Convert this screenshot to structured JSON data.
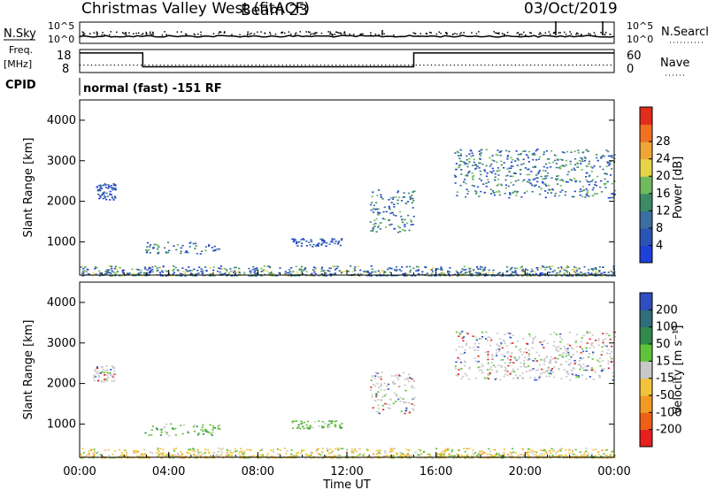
{
  "header": {
    "station": "Christmas Valley West (fitACF)",
    "beam": "Beam 23",
    "date": "03/Oct/2019"
  },
  "top_panels": {
    "nsky_label": "N.Sky",
    "nsearch_label": "N.Search",
    "freq_label_1": "Freq.",
    "freq_label_2": "[MHz]",
    "nave_label": "Nave",
    "cpid_label": "CPID",
    "cpid_text": "normal (fast) -151 RF",
    "noise_ticks": [
      "10^5",
      "10^0"
    ],
    "freq_ticks": [
      "18",
      "8"
    ],
    "nave_ticks": [
      "60",
      "0"
    ]
  },
  "axes": {
    "xlabel": "Time UT",
    "ylabel": "Slant Range [km]",
    "power_label": "Power [dB]",
    "velocity_label": "Velocity [m s⁻¹]"
  },
  "chart_data": [
    {
      "type": "line",
      "title": "Noise / Frequency / Nave",
      "series": [
        {
          "name": "N.Sky",
          "x": [
            "00:00",
            "02:00",
            "04:00",
            "06:00",
            "08:00",
            "10:00",
            "12:00",
            "14:00",
            "16:00",
            "18:00",
            "20:00",
            "22:00",
            "24:00"
          ],
          "values": [
            10,
            10,
            10,
            10,
            10,
            10,
            10,
            10,
            10,
            10,
            10,
            10,
            10
          ]
        },
        {
          "name": "Freq",
          "x": [
            "00:00",
            "02:50",
            "02:50",
            "15:00",
            "15:00",
            "24:00"
          ],
          "values": [
            16.5,
            16.5,
            10.5,
            10.5,
            16.5,
            16.5
          ]
        }
      ]
    },
    {
      "type": "heatmap",
      "title": "Power",
      "xlim": [
        "00:00",
        "24:00"
      ],
      "ylim": [
        180,
        4500
      ],
      "x_ticks": [
        "00:00",
        "04:00",
        "08:00",
        "12:00",
        "16:00",
        "20:00",
        "00:00"
      ],
      "y_ticks": [
        1000,
        2000,
        3000,
        4000
      ],
      "colorbar_ticks": [
        4,
        8,
        12,
        16,
        20,
        24,
        28
      ],
      "colorbar_label": "Power [dB]",
      "colorbar_colors": [
        "#1f3fd9",
        "#2b55b5",
        "#3c6ea0",
        "#3d8a67",
        "#6fba5f",
        "#e7d34a",
        "#f0a634",
        "#f07220",
        "#e02d1d"
      ],
      "regions": [
        {
          "t0": 0.6,
          "t1": 1.6,
          "r0": 2050,
          "r1": 2450,
          "dominant": "blue"
        },
        {
          "t0": 2.9,
          "t1": 6.3,
          "r0": 720,
          "r1": 1020,
          "dominant": "blue-green"
        },
        {
          "t0": 9.5,
          "t1": 11.8,
          "r0": 900,
          "r1": 1100,
          "dominant": "blue"
        },
        {
          "t0": 13.0,
          "t1": 15.0,
          "r0": 1250,
          "r1": 2300,
          "dominant": "blue-green"
        },
        {
          "t0": 16.8,
          "t1": 24.0,
          "r0": 2100,
          "r1": 3300,
          "dominant": "blue-green"
        },
        {
          "t0": 0.0,
          "t1": 24.0,
          "r0": 180,
          "r1": 420,
          "dominant": "ground-scatter"
        }
      ]
    },
    {
      "type": "heatmap",
      "title": "Velocity",
      "xlim": [
        "00:00",
        "24:00"
      ],
      "ylim": [
        180,
        4500
      ],
      "x_ticks": [
        "00:00",
        "04:00",
        "08:00",
        "12:00",
        "16:00",
        "20:00",
        "00:00"
      ],
      "y_ticks": [
        1000,
        2000,
        3000,
        4000
      ],
      "colorbar_ticks": [
        200,
        100,
        50,
        15,
        -15,
        -50,
        -100,
        -200
      ],
      "colorbar_label": "Velocity [m s⁻¹]",
      "colorbar_colors": [
        "#2f4ec0",
        "#2f6e7a",
        "#31894a",
        "#5fc23a",
        "#c8c8c8",
        "#f3c43b",
        "#f39a24",
        "#ef6016",
        "#e61f1f"
      ],
      "regions": [
        {
          "t0": 0.6,
          "t1": 1.6,
          "r0": 2050,
          "r1": 2450,
          "dominant": "grey"
        },
        {
          "t0": 2.9,
          "t1": 6.3,
          "r0": 720,
          "r1": 1020,
          "dominant": "green"
        },
        {
          "t0": 9.5,
          "t1": 11.8,
          "r0": 900,
          "r1": 1100,
          "dominant": "green"
        },
        {
          "t0": 13.0,
          "t1": 15.0,
          "r0": 1250,
          "r1": 2300,
          "dominant": "grey"
        },
        {
          "t0": 16.8,
          "t1": 24.0,
          "r0": 2100,
          "r1": 3300,
          "dominant": "grey"
        },
        {
          "t0": 0.0,
          "t1": 24.0,
          "r0": 180,
          "r1": 420,
          "dominant": "orange"
        }
      ]
    }
  ]
}
